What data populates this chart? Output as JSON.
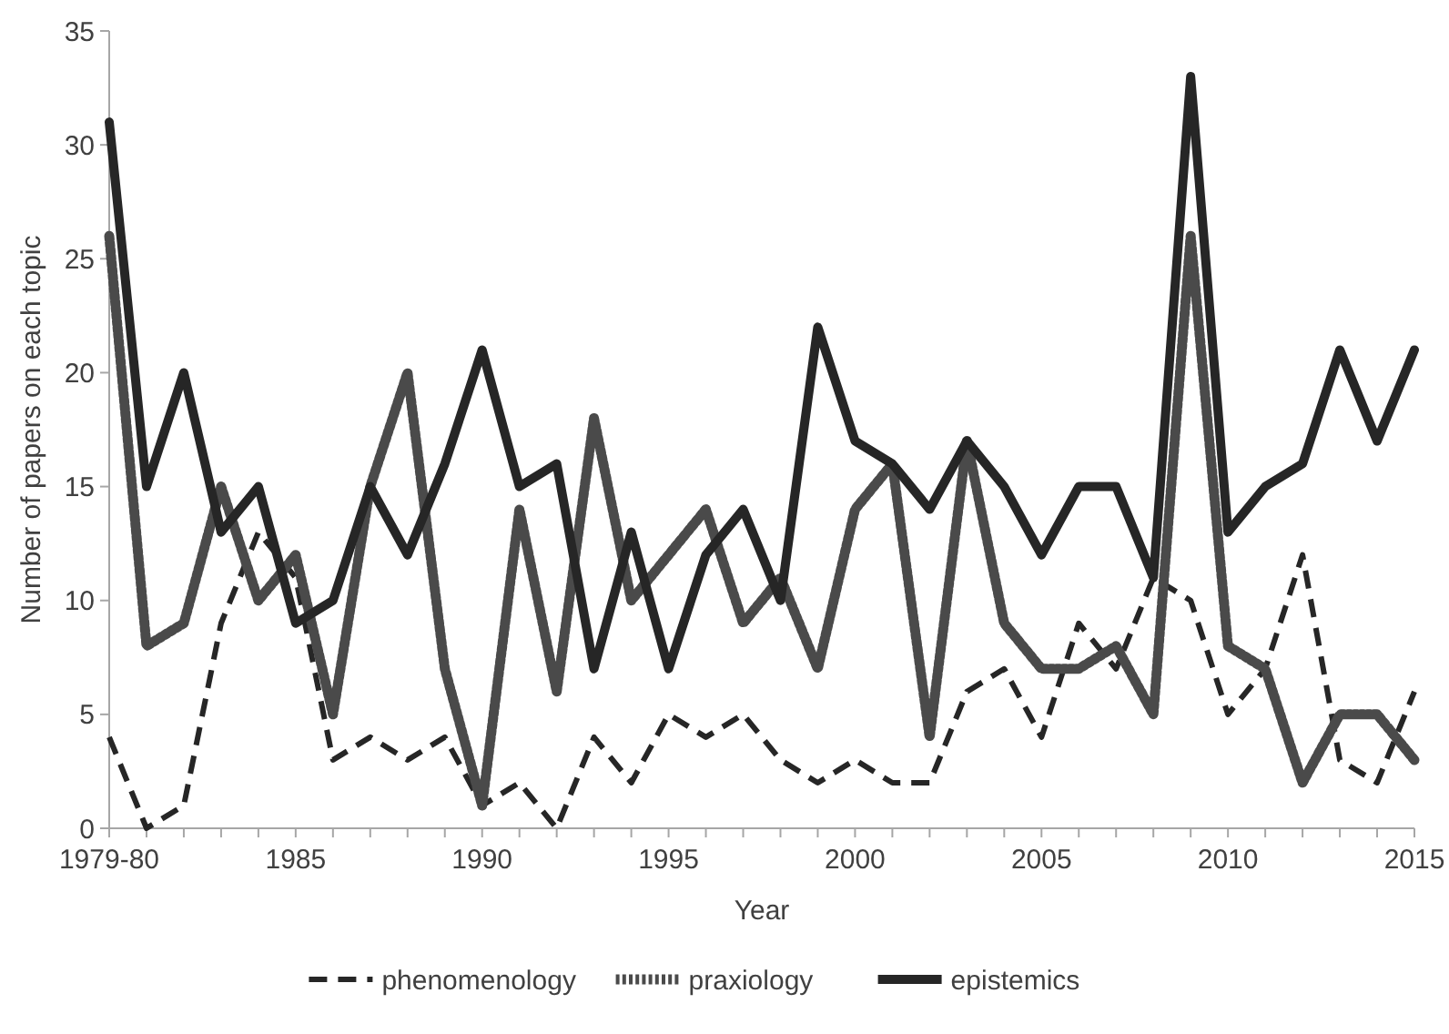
{
  "chart_data": {
    "type": "line",
    "xlabel": "Year",
    "ylabel": "Number of papers on each topic",
    "x": [
      1980,
      1981,
      1982,
      1983,
      1984,
      1985,
      1986,
      1987,
      1988,
      1989,
      1990,
      1991,
      1992,
      1993,
      1994,
      1995,
      1996,
      1997,
      1998,
      1999,
      2000,
      2001,
      2002,
      2003,
      2004,
      2005,
      2006,
      2007,
      2008,
      2009,
      2010,
      2011,
      2012,
      2013,
      2014,
      2015
    ],
    "series": [
      {
        "name": "phenomenology",
        "color": "#262626",
        "line_style": "dashed",
        "values": [
          4,
          0,
          1,
          9,
          13,
          11,
          3,
          4,
          3,
          4,
          1,
          2,
          0,
          4,
          2,
          5,
          4,
          5,
          3,
          2,
          3,
          2,
          2,
          6,
          7,
          4,
          9,
          7,
          11,
          10,
          5,
          7,
          12,
          3,
          2,
          6
        ]
      },
      {
        "name": "praxiology",
        "color": "#4a4a4a",
        "line_style": "dotted",
        "values": [
          26,
          8,
          9,
          15,
          10,
          12,
          5,
          15,
          20,
          7,
          1,
          14,
          6,
          18,
          10,
          12,
          14,
          9,
          11,
          7,
          14,
          16,
          4,
          17,
          9,
          7,
          7,
          8,
          5,
          26,
          8,
          7,
          2,
          5,
          5,
          3
        ]
      },
      {
        "name": "epistemics",
        "color": "#262626",
        "line_style": "solid",
        "values": [
          31,
          15,
          20,
          13,
          15,
          9,
          10,
          15,
          12,
          16,
          21,
          15,
          16,
          7,
          13,
          7,
          12,
          14,
          10,
          22,
          17,
          16,
          14,
          17,
          15,
          12,
          15,
          15,
          11,
          33,
          13,
          15,
          16,
          21,
          17,
          21
        ]
      }
    ],
    "xlim": [
      1980,
      2015
    ],
    "xticks": [
      {
        "value": 1980,
        "label": "1979-80"
      },
      {
        "value": 1981,
        "label": null
      },
      {
        "value": 1982,
        "label": null
      },
      {
        "value": 1983,
        "label": null
      },
      {
        "value": 1984,
        "label": null
      },
      1985,
      {
        "value": 1986,
        "label": null
      },
      {
        "value": 1987,
        "label": null
      },
      {
        "value": 1988,
        "label": null
      },
      {
        "value": 1989,
        "label": null
      },
      1990,
      {
        "value": 1991,
        "label": null
      },
      {
        "value": 1992,
        "label": null
      },
      {
        "value": 1993,
        "label": null
      },
      {
        "value": 1994,
        "label": null
      },
      1995,
      {
        "value": 1996,
        "label": null
      },
      {
        "value": 1997,
        "label": null
      },
      {
        "value": 1998,
        "label": null
      },
      {
        "value": 1999,
        "label": null
      },
      2000,
      {
        "value": 2001,
        "label": null
      },
      {
        "value": 2002,
        "label": null
      },
      {
        "value": 2003,
        "label": null
      },
      {
        "value": 2004,
        "label": null
      },
      2005,
      {
        "value": 2006,
        "label": null
      },
      {
        "value": 2007,
        "label": null
      },
      {
        "value": 2008,
        "label": null
      },
      {
        "value": 2009,
        "label": null
      },
      2010,
      {
        "value": 2011,
        "label": null
      },
      {
        "value": 2012,
        "label": null
      },
      {
        "value": 2013,
        "label": null
      },
      {
        "value": 2014,
        "label": null
      },
      2015
    ],
    "ylim": [
      0,
      35
    ],
    "yticks": [
      0,
      5,
      10,
      15,
      20,
      25,
      30,
      35
    ],
    "grid": false,
    "legend": "bottom",
    "marker": "none"
  }
}
